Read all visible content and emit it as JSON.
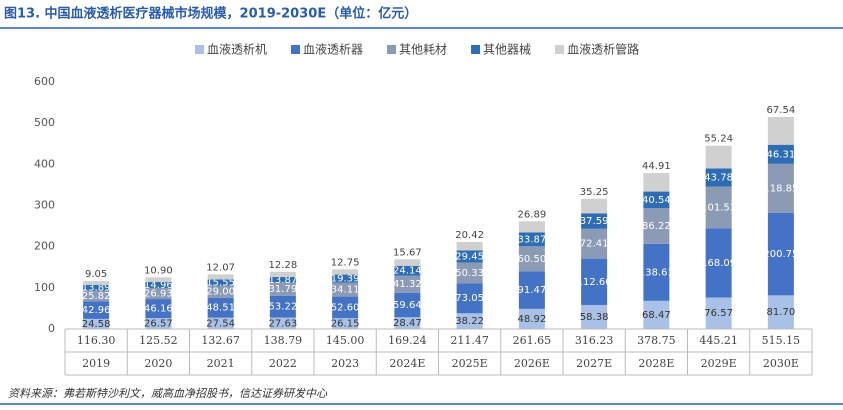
{
  "chart_data": {
    "type": "stacked_bar",
    "title": "图13. 中国血液透析医疗器械市场规模，2019-2030E（单位：亿元）",
    "categories": [
      "2019",
      "2020",
      "2021",
      "2022",
      "2023",
      "2024E",
      "2025E",
      "2026E",
      "2027E",
      "2028E",
      "2029E",
      "2030E"
    ],
    "series": [
      {
        "name": "血液透析机",
        "color": "#a9c1e6",
        "text_color": "#333333",
        "values": [
          24.58,
          26.57,
          27.54,
          27.63,
          26.15,
          28.47,
          38.22,
          48.92,
          58.38,
          68.47,
          76.57,
          81.7
        ],
        "value_labels": [
          "24.58",
          "26.57",
          "27.54",
          "27.63",
          "26.15",
          "28.47",
          "38.22",
          "48.92",
          "58.38",
          "68.47",
          "76.57",
          "81.70"
        ]
      },
      {
        "name": "血液透析器",
        "color": "#4472c4",
        "text_color": "#ffffff",
        "values": [
          42.96,
          46.16,
          48.51,
          53.22,
          52.6,
          59.64,
          73.05,
          91.47,
          112.6,
          138.61,
          168.09,
          200.75
        ],
        "value_labels": [
          "42.96",
          "46.16",
          "48.51",
          "53.22",
          "52.60",
          "59.64",
          "73.05",
          "91.47",
          "112.60",
          "138.61",
          "168.09",
          "200.75"
        ]
      },
      {
        "name": "其他耗材",
        "color": "#8c9bb5",
        "text_color": "#ffffff",
        "values": [
          25.82,
          26.93,
          29.0,
          31.79,
          34.11,
          41.32,
          50.33,
          60.5,
          72.41,
          86.22,
          101.53,
          118.85
        ],
        "value_labels": [
          "25.82",
          "26.93",
          "29.00",
          "31.79",
          "34.11",
          "41.32",
          "50.33",
          "60.50",
          "72.41",
          "86.22",
          "101.53",
          "118.85"
        ]
      },
      {
        "name": "其他器械",
        "color": "#2e6db4",
        "text_color": "#ffffff",
        "values": [
          13.89,
          14.96,
          15.55,
          13.87,
          19.39,
          24.14,
          29.45,
          33.87,
          37.59,
          40.54,
          43.78,
          46.31
        ],
        "value_labels": [
          "13.89",
          "14.96",
          "15.55",
          "13.87",
          "19.39",
          "24.14",
          "29.45",
          "33.87",
          "37.59",
          "40.54",
          "43.78",
          "46.31"
        ]
      },
      {
        "name": "血液透析管路",
        "color": "#d0d0d0",
        "text_color": "#333333",
        "values": [
          9.05,
          10.9,
          12.07,
          12.28,
          12.75,
          15.67,
          20.42,
          26.89,
          35.25,
          44.91,
          55.24,
          67.54
        ],
        "value_labels": [
          "9.05",
          "10.90",
          "12.07",
          "12.28",
          "12.75",
          "15.67",
          "20.42",
          "26.89",
          "35.25",
          "44.91",
          "55.24",
          "67.54"
        ]
      }
    ],
    "totals": [
      "116.30",
      "125.52",
      "132.67",
      "138.79",
      "145.00",
      "169.24",
      "211.47",
      "261.65",
      "316.23",
      "378.75",
      "445.21",
      "515.15"
    ],
    "ylim": [
      0,
      600
    ],
    "yticks": [
      0,
      100,
      200,
      300,
      400,
      500,
      600
    ],
    "source": "资料来源：弗若斯特沙利文，威高血净招股书，信达证券研发中心"
  }
}
